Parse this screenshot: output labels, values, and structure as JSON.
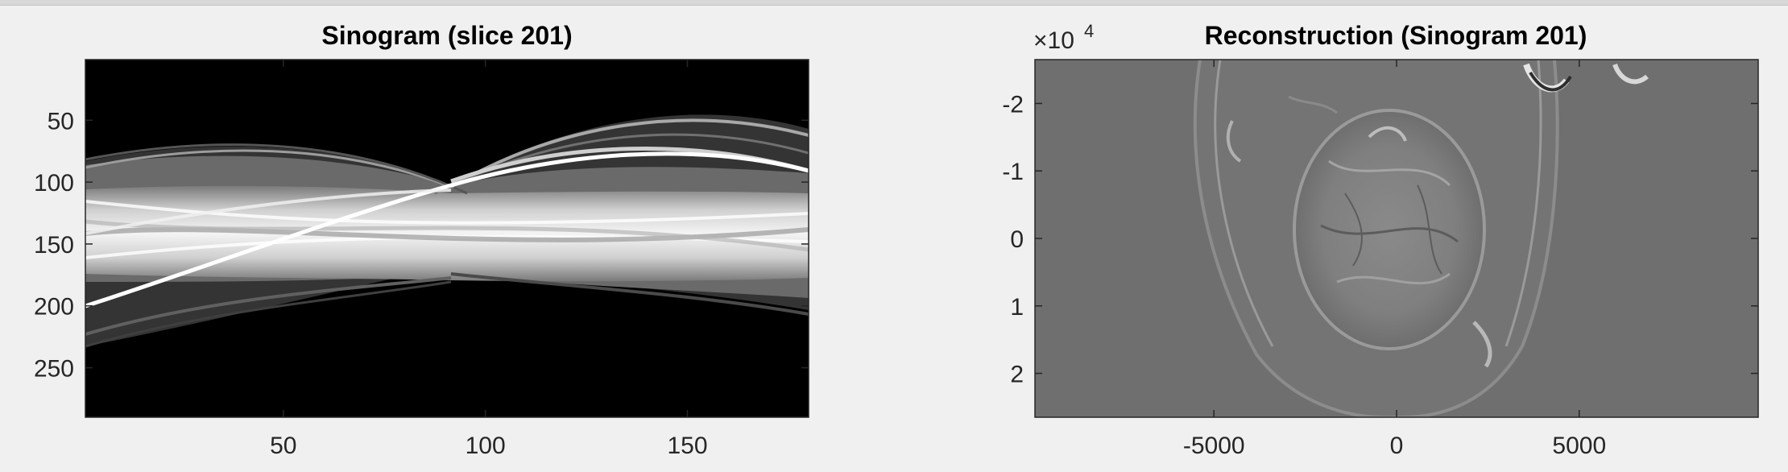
{
  "chart_data": [
    {
      "type": "heatmap",
      "title": "Sinogram (slice 201)",
      "xlim": [
        1,
        180
      ],
      "ylim": [
        1,
        290
      ],
      "y_direction": "reverse",
      "xticks": [
        50,
        100,
        150
      ],
      "yticks": [
        50,
        100,
        150,
        200,
        250
      ],
      "colormap": "gray",
      "background": "#000000"
    },
    {
      "type": "heatmap",
      "title": "Reconstruction (Sinogram 201)",
      "xlim": [
        -9900,
        9900
      ],
      "ylim": [
        -2.65,
        2.65
      ],
      "y_direction": "reverse",
      "xticks": [
        -5000,
        0,
        5000
      ],
      "yticks": [
        -2,
        -1,
        0,
        1,
        2
      ],
      "y_exponent_label": "×10",
      "y_exponent": "4",
      "colormap": "gray",
      "background": "#6e6e6e"
    }
  ]
}
